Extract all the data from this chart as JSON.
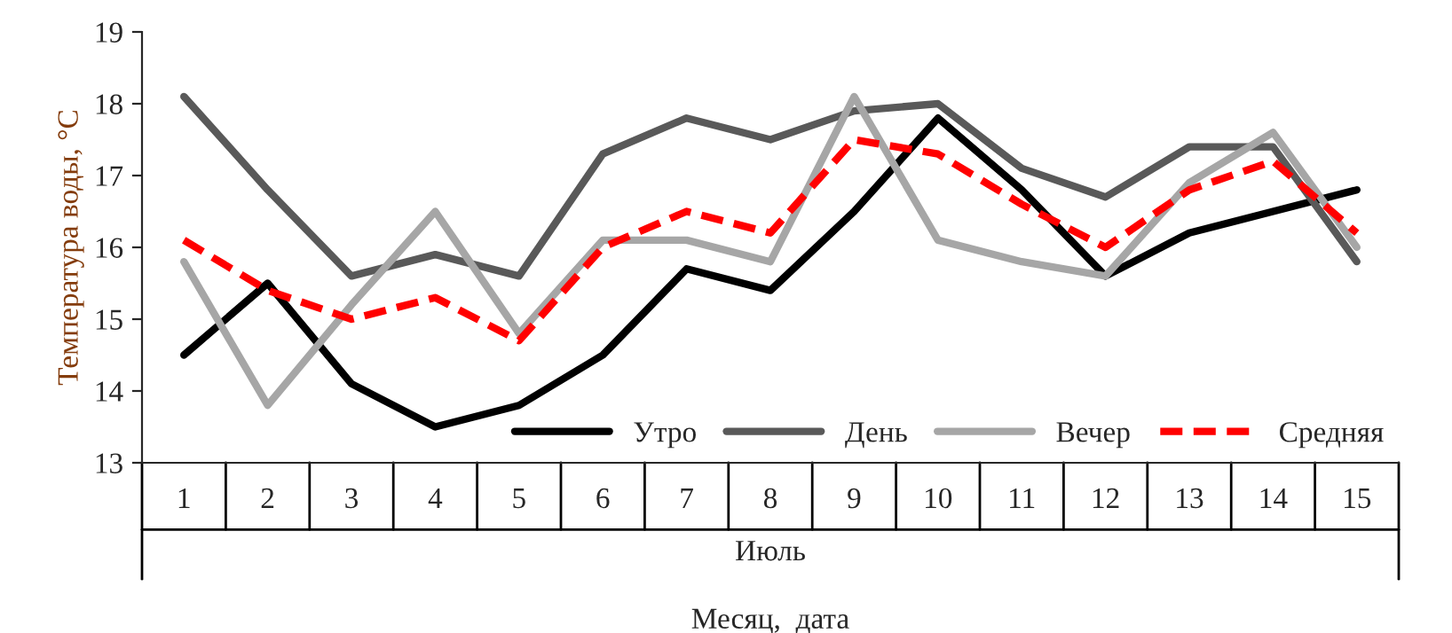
{
  "chart_data": {
    "type": "line",
    "xlabel": "Месяц,  дата",
    "ylabel": "Температура воды, °С",
    "categories": [
      "1",
      "2",
      "3",
      "4",
      "5",
      "6",
      "7",
      "8",
      "9",
      "10",
      "11",
      "12",
      "13",
      "14",
      "15"
    ],
    "series": [
      {
        "name": "Утро",
        "color": "#000000",
        "line_style": "solid",
        "values": [
          14.5,
          15.5,
          14.1,
          13.5,
          13.8,
          14.5,
          15.7,
          15.4,
          16.5,
          17.8,
          16.8,
          15.6,
          16.2,
          16.5,
          16.8
        ]
      },
      {
        "name": "День",
        "color": "#595959",
        "line_style": "solid",
        "values": [
          18.1,
          16.8,
          15.6,
          15.9,
          15.6,
          17.3,
          17.8,
          17.5,
          17.9,
          18.0,
          17.1,
          16.7,
          17.4,
          17.4,
          15.8
        ]
      },
      {
        "name": "Вечер",
        "color": "#a6a6a6",
        "line_style": "solid",
        "values": [
          15.8,
          13.8,
          15.2,
          16.5,
          14.8,
          16.1,
          16.1,
          15.8,
          18.1,
          16.1,
          15.8,
          15.6,
          16.9,
          17.6,
          16.0
        ]
      },
      {
        "name": "Средняя",
        "color": "#ff0000",
        "line_style": "dashed",
        "values": [
          16.1,
          15.4,
          15.0,
          15.3,
          14.7,
          16.0,
          16.5,
          16.2,
          17.5,
          17.3,
          16.6,
          16.0,
          16.8,
          17.2,
          16.2
        ]
      }
    ],
    "annotations": [
      "Июль"
    ],
    "ylim": [
      13,
      19
    ],
    "yticks": [
      13,
      14,
      15,
      16,
      17,
      18,
      19
    ],
    "grid": false,
    "legend": "bottom right",
    "marker": "none"
  }
}
